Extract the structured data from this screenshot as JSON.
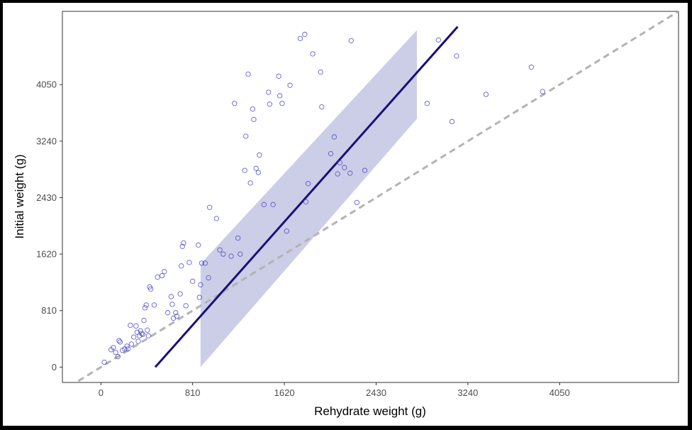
{
  "chart_data": {
    "type": "scatter",
    "title": "",
    "xlabel": "Rehydrate weight (g)",
    "ylabel": "Initial weight (g)",
    "xlim": [
      -340,
      5100
    ],
    "ylim": [
      -220,
      5100
    ],
    "x_ticks": [
      0,
      810,
      1620,
      2430,
      3240,
      4050
    ],
    "y_ticks": [
      0,
      810,
      1620,
      2430,
      3240,
      4050
    ],
    "grid": false,
    "legend": "none",
    "colors": {
      "points": "#4a46c8",
      "fit_line": "#1a0f7a",
      "band": "#c6c8e4",
      "identity_line": "#b3b3b3"
    },
    "fit_line": {
      "x": [
        480,
        3150
      ],
      "y": [
        0,
        4880
      ]
    },
    "band": {
      "x": [
        880,
        2790
      ],
      "lower": [
        0,
        3560
      ],
      "upper": [
        1480,
        4830
      ]
    },
    "identity_line": {
      "x": [
        -200,
        5200
      ],
      "y": [
        -200,
        5200
      ]
    },
    "points": [
      [
        30,
        70
      ],
      [
        90,
        250
      ],
      [
        110,
        280
      ],
      [
        130,
        210
      ],
      [
        150,
        150
      ],
      [
        160,
        380
      ],
      [
        170,
        360
      ],
      [
        190,
        240
      ],
      [
        210,
        260
      ],
      [
        230,
        300
      ],
      [
        240,
        260
      ],
      [
        260,
        600
      ],
      [
        270,
        330
      ],
      [
        290,
        430
      ],
      [
        310,
        590
      ],
      [
        320,
        500
      ],
      [
        330,
        370
      ],
      [
        340,
        450
      ],
      [
        350,
        520
      ],
      [
        360,
        480
      ],
      [
        370,
        470
      ],
      [
        380,
        670
      ],
      [
        390,
        850
      ],
      [
        400,
        890
      ],
      [
        410,
        530
      ],
      [
        420,
        450
      ],
      [
        430,
        1150
      ],
      [
        440,
        1120
      ],
      [
        470,
        890
      ],
      [
        500,
        1290
      ],
      [
        540,
        1310
      ],
      [
        560,
        1370
      ],
      [
        590,
        780
      ],
      [
        620,
        1010
      ],
      [
        630,
        900
      ],
      [
        640,
        700
      ],
      [
        660,
        780
      ],
      [
        670,
        730
      ],
      [
        700,
        1050
      ],
      [
        710,
        1450
      ],
      [
        720,
        1730
      ],
      [
        730,
        1780
      ],
      [
        750,
        880
      ],
      [
        780,
        1500
      ],
      [
        810,
        1230
      ],
      [
        860,
        1750
      ],
      [
        870,
        1000
      ],
      [
        880,
        1180
      ],
      [
        890,
        1490
      ],
      [
        920,
        1490
      ],
      [
        950,
        1280
      ],
      [
        960,
        2290
      ],
      [
        1020,
        2130
      ],
      [
        1050,
        1680
      ],
      [
        1080,
        1620
      ],
      [
        1150,
        1590
      ],
      [
        1180,
        3780
      ],
      [
        1210,
        1850
      ],
      [
        1230,
        1620
      ],
      [
        1270,
        2820
      ],
      [
        1280,
        3310
      ],
      [
        1300,
        4200
      ],
      [
        1320,
        2640
      ],
      [
        1340,
        3700
      ],
      [
        1350,
        3550
      ],
      [
        1370,
        2850
      ],
      [
        1390,
        2790
      ],
      [
        1400,
        3040
      ],
      [
        1440,
        2330
      ],
      [
        1480,
        3940
      ],
      [
        1490,
        3770
      ],
      [
        1520,
        2330
      ],
      [
        1570,
        4170
      ],
      [
        1580,
        3890
      ],
      [
        1600,
        3780
      ],
      [
        1640,
        1950
      ],
      [
        1670,
        4040
      ],
      [
        1760,
        4710
      ],
      [
        1800,
        4770
      ],
      [
        1810,
        2370
      ],
      [
        1830,
        2630
      ],
      [
        1870,
        4490
      ],
      [
        1940,
        4230
      ],
      [
        1950,
        3730
      ],
      [
        2030,
        3060
      ],
      [
        2060,
        3300
      ],
      [
        2090,
        2770
      ],
      [
        2110,
        2930
      ],
      [
        2150,
        2860
      ],
      [
        2200,
        2780
      ],
      [
        2210,
        4680
      ],
      [
        2260,
        2360
      ],
      [
        2330,
        2820
      ],
      [
        2880,
        3780
      ],
      [
        2980,
        4690
      ],
      [
        3100,
        3520
      ],
      [
        3140,
        4460
      ],
      [
        3400,
        3910
      ],
      [
        3800,
        4300
      ],
      [
        3900,
        3950
      ]
    ]
  }
}
